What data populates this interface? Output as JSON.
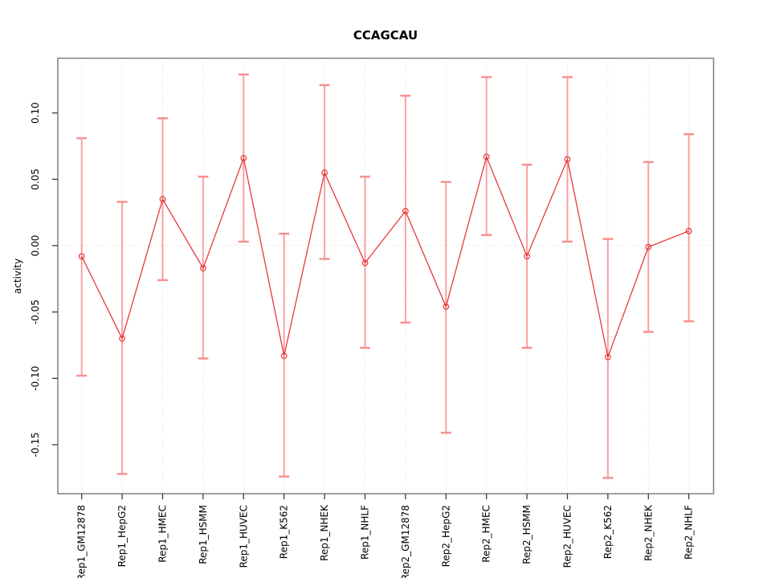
{
  "figure": {
    "title": "CCAGCAU",
    "ylabel": "activity"
  },
  "chart_data": {
    "type": "line",
    "title": "CCAGCAU",
    "xlabel": "",
    "ylabel": "activity",
    "legend": "none",
    "grid": {
      "vertical_dotted_per_category": true,
      "horizontal_dotted_at_zero": true
    },
    "categories": [
      "Rep1_GM12878",
      "Rep1_HepG2",
      "Rep1_HMEC",
      "Rep1_HSMM",
      "Rep1_HUVEC",
      "Rep1_K562",
      "Rep1_NHEK",
      "Rep1_NHLF",
      "Rep2_GM12878",
      "Rep2_HepG2",
      "Rep2_HMEC",
      "Rep2_HSMM",
      "Rep2_HUVEC",
      "Rep2_K562",
      "Rep2_NHEK",
      "Rep2_NHLF"
    ],
    "series": [
      {
        "name": "activity",
        "values": [
          -0.008,
          -0.07,
          0.035,
          -0.017,
          0.066,
          -0.083,
          0.055,
          -0.013,
          0.026,
          -0.046,
          0.067,
          -0.008,
          0.065,
          -0.084,
          -0.001,
          0.011
        ],
        "error_upper": [
          0.081,
          0.033,
          0.096,
          0.052,
          0.129,
          0.009,
          0.121,
          0.052,
          0.113,
          0.048,
          0.127,
          0.061,
          0.127,
          0.005,
          0.063,
          0.084
        ],
        "error_lower": [
          -0.098,
          -0.172,
          -0.026,
          -0.085,
          0.003,
          -0.174,
          -0.01,
          -0.077,
          -0.058,
          -0.141,
          0.008,
          -0.077,
          0.003,
          -0.175,
          -0.065,
          -0.057
        ]
      }
    ],
    "yticks": [
      0.1,
      0.05,
      0.0,
      -0.05,
      -0.1,
      -0.15
    ],
    "ytick_labels": [
      "0.10",
      "0.05",
      "0.00",
      "-0.05",
      "-0.10",
      "-0.15"
    ],
    "ylim": [
      -0.187,
      0.141
    ],
    "marker": "open-circle",
    "colors": {
      "line": "#e83838",
      "point": "#e83838",
      "error_bar": "#f89090",
      "grid": "#d9d9d9",
      "box": "#808080",
      "tick": "#3a3a3a",
      "text": "#000000",
      "background": "#ffffff"
    }
  }
}
